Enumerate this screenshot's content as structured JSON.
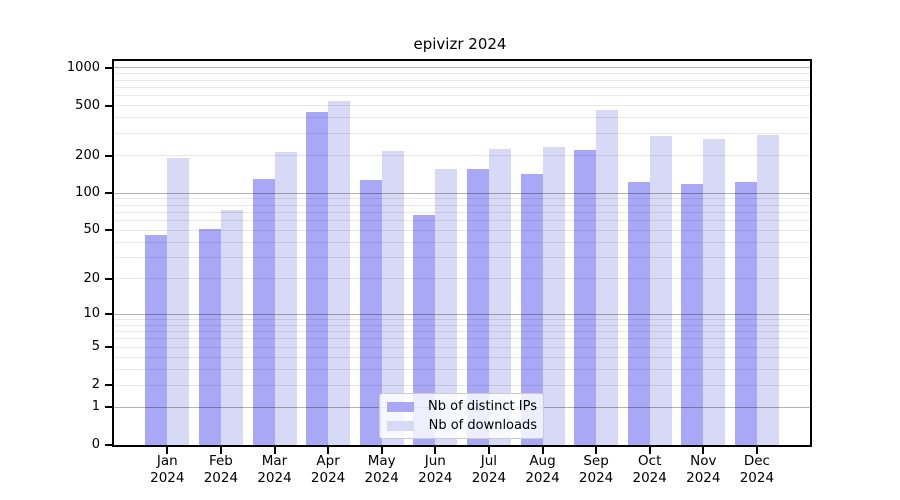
{
  "colors": {
    "distinct_ips_bar": "#a8a8f7",
    "downloads_bar": "#d8d8f7",
    "axis": "#000000"
  },
  "chart_data": {
    "type": "bar",
    "title": "epivizr 2024",
    "categories": [
      "Jan 2024",
      "Feb 2024",
      "Mar 2024",
      "Apr 2024",
      "May 2024",
      "Jun 2024",
      "Jul 2024",
      "Aug 2024",
      "Sep 2024",
      "Oct 2024",
      "Nov 2024",
      "Dec 2024"
    ],
    "series": [
      {
        "name": "Nb of distinct IPs",
        "values": [
          46,
          51,
          130,
          447,
          128,
          67,
          156,
          142,
          221,
          123,
          118,
          122
        ]
      },
      {
        "name": "Nb of downloads",
        "values": [
          193,
          73,
          215,
          546,
          216,
          155,
          226,
          236,
          466,
          287,
          273,
          294
        ]
      }
    ],
    "xlabel": "",
    "ylabel": "",
    "yscale": "log1p",
    "ylim": [
      0,
      1135
    ],
    "y_ticks": [
      0,
      1,
      2,
      5,
      10,
      20,
      50,
      100,
      200,
      500,
      1000
    ],
    "grid": "major-and-minor, drawn over bars",
    "legend_position": "inside lower-center"
  }
}
